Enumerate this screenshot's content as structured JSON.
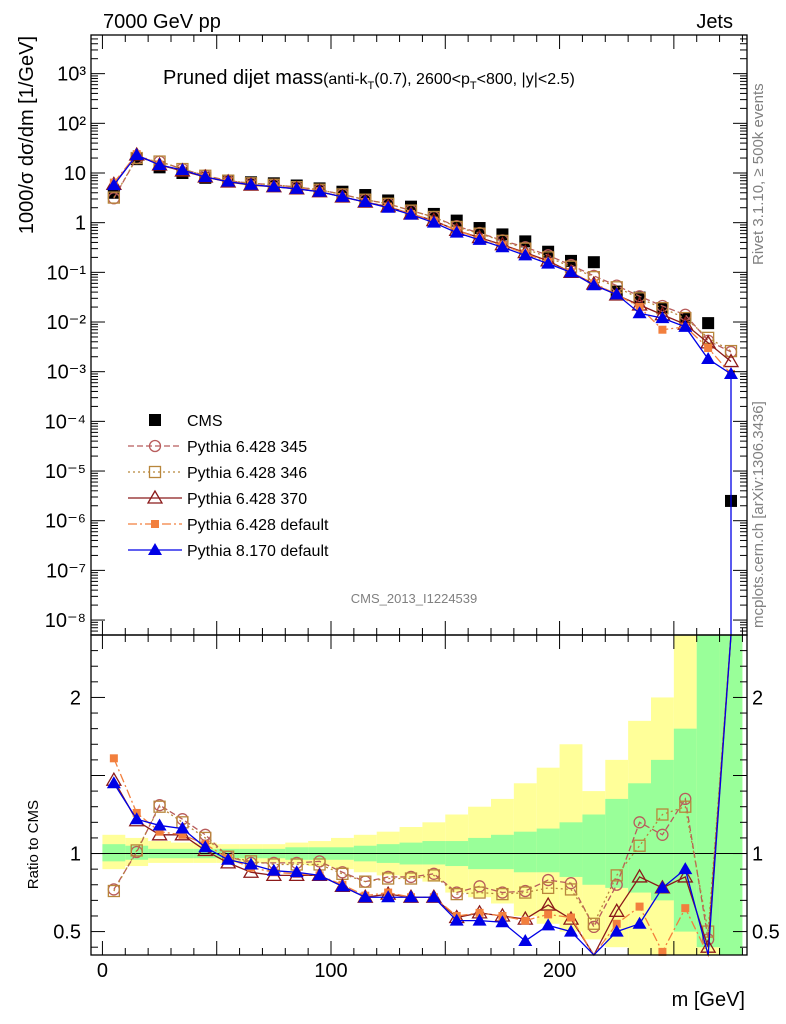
{
  "header": {
    "left": "7000 GeV pp",
    "right": "Jets"
  },
  "title": {
    "main": "Pruned dijet mass",
    "sub_pre": "(anti-k",
    "sub_sub1": "T",
    "sub_mid": "(0.7), 2600<p",
    "sub_sub2": "T",
    "sub_post": "<800, |y|<2.5)"
  },
  "side_labels": {
    "rivet": "Rivet 3.1.10, ≥ 500k events",
    "mcplots": "mcplots.cern.ch [arXiv:1306.3436]"
  },
  "analysis_id": "CMS_2013_I1224539",
  "chart_data": [
    {
      "type": "scatter",
      "panel": "main",
      "ylabel": "1000/σ dσ/dm [1/GeV]",
      "yscale": "log",
      "ylim": [
        5e-09,
        6000
      ],
      "xlim": [
        -5,
        282
      ],
      "y_ticks": [
        "10⁻⁸",
        "10⁻⁷",
        "10⁻⁶",
        "10⁻⁵",
        "10⁻⁴",
        "10⁻³",
        "10⁻²",
        "10⁻¹",
        "1",
        "10",
        "10²",
        "10³"
      ],
      "x": [
        5,
        15,
        25,
        35,
        45,
        55,
        65,
        75,
        85,
        95,
        105,
        115,
        125,
        135,
        145,
        155,
        165,
        175,
        185,
        195,
        205,
        215,
        225,
        235,
        245,
        255,
        265,
        275
      ],
      "series": [
        {
          "name": "CMS",
          "color": "#000000",
          "marker": "square-filled",
          "values": [
            4,
            19,
            13,
            10,
            8,
            7,
            6.5,
            6.2,
            5.6,
            4.9,
            4.2,
            3.6,
            2.8,
            2.1,
            1.5,
            1.1,
            0.78,
            0.58,
            0.42,
            0.26,
            0.17,
            0.16,
            0.041,
            0.031,
            0.019,
            0.012,
            0.0095,
            2.5e-06
          ]
        },
        {
          "name": "Pythia 6.428 345",
          "color": "#b85c5c",
          "marker": "circle-open",
          "dash": "6,3",
          "values": [
            3.1,
            20,
            17,
            12,
            8.9,
            7,
            6.2,
            5.8,
            5.2,
            4.6,
            3.7,
            2.9,
            2.4,
            1.75,
            1.3,
            0.85,
            0.62,
            0.44,
            0.32,
            0.22,
            0.14,
            0.085,
            0.054,
            0.033,
            0.021,
            0.014,
            0.0042,
            0.0025
          ]
        },
        {
          "name": "Pythia 6.428 346",
          "color": "#b8863b",
          "marker": "square-open",
          "dash": "2,3",
          "values": [
            3.2,
            20,
            17,
            12,
            8.8,
            7,
            6.2,
            5.8,
            5.2,
            4.6,
            3.7,
            2.9,
            2.4,
            1.75,
            1.3,
            0.82,
            0.6,
            0.43,
            0.3,
            0.2,
            0.13,
            0.08,
            0.05,
            0.03,
            0.019,
            0.012,
            0.0048,
            0.0026
          ]
        },
        {
          "name": "Pythia 6.428 370",
          "color": "#8b1a1a",
          "marker": "triangle-open",
          "dash": "",
          "values": [
            5.9,
            23,
            14.5,
            11,
            8.3,
            6.6,
            5.7,
            5.3,
            4.8,
            4.2,
            3.3,
            2.6,
            2.1,
            1.5,
            1.1,
            0.7,
            0.5,
            0.36,
            0.25,
            0.17,
            0.1,
            0.058,
            0.035,
            0.022,
            0.014,
            0.009,
            0.0038,
            0.0016
          ]
        },
        {
          "name": "Pythia 6.428 default",
          "color": "#f27f3d",
          "marker": "square-small-filled",
          "dash": "9,3,2,3",
          "values": [
            6.4,
            24,
            14.8,
            11.2,
            8.5,
            6.8,
            5.9,
            5.4,
            4.9,
            4.3,
            3.3,
            2.6,
            2.1,
            1.5,
            1.1,
            0.7,
            0.48,
            0.35,
            0.24,
            0.16,
            0.1,
            0.06,
            0.036,
            0.02,
            0.007,
            0.008,
            0.003,
            0.0009
          ]
        },
        {
          "name": "Pythia 8.170 default",
          "color": "#0000e6",
          "marker": "triangle-filled",
          "dash": "",
          "values": [
            5.7,
            23,
            14.5,
            11.5,
            8.3,
            6.7,
            5.8,
            5.3,
            4.8,
            4.2,
            3.3,
            2.6,
            2.0,
            1.45,
            1.0,
            0.63,
            0.45,
            0.32,
            0.22,
            0.15,
            0.1,
            0.055,
            0.036,
            0.015,
            0.012,
            0.008,
            0.0018,
            0.0009
          ]
        }
      ]
    },
    {
      "type": "line",
      "panel": "ratio",
      "ylabel": "Ratio to CMS",
      "ylim": [
        0.35,
        2.4
      ],
      "xlim": [
        -5,
        282
      ],
      "x_ticks": [
        0,
        100,
        200
      ],
      "xlabel": "m [GeV]",
      "y_ticks": [
        0.5,
        1,
        2
      ],
      "x": [
        5,
        15,
        25,
        35,
        45,
        55,
        65,
        75,
        85,
        95,
        105,
        115,
        125,
        135,
        145,
        155,
        165,
        175,
        185,
        195,
        205,
        215,
        225,
        235,
        245,
        255,
        265,
        275
      ],
      "band_edges": [
        0,
        10,
        20,
        30,
        40,
        50,
        60,
        70,
        80,
        90,
        100,
        110,
        120,
        130,
        140,
        150,
        160,
        170,
        180,
        190,
        200,
        210,
        220,
        230,
        240,
        250,
        260,
        270,
        280
      ],
      "band_inner": {
        "color": "#99ff99",
        "lo": [
          0.95,
          0.96,
          0.97,
          0.97,
          0.97,
          0.97,
          0.97,
          0.97,
          0.96,
          0.96,
          0.96,
          0.95,
          0.94,
          0.93,
          0.93,
          0.92,
          0.9,
          0.9,
          0.88,
          0.88,
          0.85,
          0.8,
          0.78,
          0.75,
          0.7,
          0.5,
          0.4,
          0.35
        ],
        "hi": [
          1.06,
          1.05,
          1.03,
          1.03,
          1.03,
          1.03,
          1.03,
          1.03,
          1.04,
          1.04,
          1.04,
          1.05,
          1.06,
          1.07,
          1.08,
          1.08,
          1.1,
          1.12,
          1.14,
          1.16,
          1.2,
          1.25,
          1.35,
          1.45,
          1.6,
          1.8,
          2.4,
          2.4
        ]
      },
      "band_outer": {
        "color": "#ffff99",
        "lo": [
          0.9,
          0.92,
          0.94,
          0.94,
          0.94,
          0.94,
          0.94,
          0.94,
          0.93,
          0.92,
          0.9,
          0.88,
          0.86,
          0.84,
          0.82,
          0.75,
          0.72,
          0.68,
          0.6,
          0.55,
          0.5,
          0.45,
          0.4,
          0.35,
          0.35,
          0.35,
          0.35,
          0.35
        ],
        "hi": [
          1.12,
          1.1,
          1.08,
          1.07,
          1.07,
          1.06,
          1.06,
          1.06,
          1.07,
          1.08,
          1.1,
          1.12,
          1.14,
          1.17,
          1.2,
          1.25,
          1.3,
          1.35,
          1.45,
          1.55,
          1.7,
          1.4,
          1.6,
          1.85,
          2.0,
          2.4,
          2.4,
          2.4
        ]
      },
      "series": [
        {
          "name": "Pythia 6.428 345",
          "values": [
            0.77,
            1.01,
            1.31,
            1.22,
            1.12,
            0.98,
            0.94,
            0.94,
            0.94,
            0.95,
            0.88,
            0.82,
            0.85,
            0.85,
            0.87,
            0.75,
            0.79,
            0.75,
            0.76,
            0.83,
            0.81,
            0.53,
            0.8,
            1.2,
            1.12,
            1.35,
            0.45,
            2.4
          ]
        },
        {
          "name": "Pythia 6.428 346",
          "values": [
            0.76,
            1.02,
            1.3,
            1.2,
            1.1,
            0.98,
            0.95,
            0.93,
            0.93,
            0.93,
            0.87,
            0.82,
            0.84,
            0.84,
            0.86,
            0.74,
            0.75,
            0.74,
            0.75,
            0.78,
            0.77,
            0.55,
            0.86,
            1.05,
            1.25,
            1.3,
            0.5,
            2.4
          ]
        },
        {
          "name": "Pythia 6.428 370",
          "values": [
            1.47,
            1.21,
            1.12,
            1.12,
            1.02,
            0.94,
            0.88,
            0.86,
            0.86,
            0.86,
            0.79,
            0.72,
            0.74,
            0.72,
            0.72,
            0.59,
            0.62,
            0.6,
            0.58,
            0.67,
            0.58,
            0.35,
            0.63,
            0.85,
            0.78,
            0.85,
            0.4,
            2.4
          ]
        },
        {
          "name": "Pythia 6.428 default",
          "values": [
            1.61,
            1.26,
            1.14,
            1.12,
            1.06,
            0.97,
            0.91,
            0.88,
            0.87,
            0.86,
            0.8,
            0.73,
            0.75,
            0.72,
            0.72,
            0.6,
            0.62,
            0.6,
            0.57,
            0.61,
            0.59,
            0.35,
            0.55,
            0.66,
            0.37,
            0.65,
            0.35,
            2.4
          ]
        },
        {
          "name": "Pythia 8.170 default",
          "values": [
            1.45,
            1.22,
            1.18,
            1.16,
            1.04,
            0.96,
            0.93,
            0.89,
            0.88,
            0.86,
            0.79,
            0.72,
            0.72,
            0.72,
            0.72,
            0.57,
            0.57,
            0.56,
            0.44,
            0.54,
            0.5,
            0.35,
            0.5,
            0.55,
            0.78,
            0.9,
            0.35,
            2.4
          ]
        }
      ]
    }
  ]
}
